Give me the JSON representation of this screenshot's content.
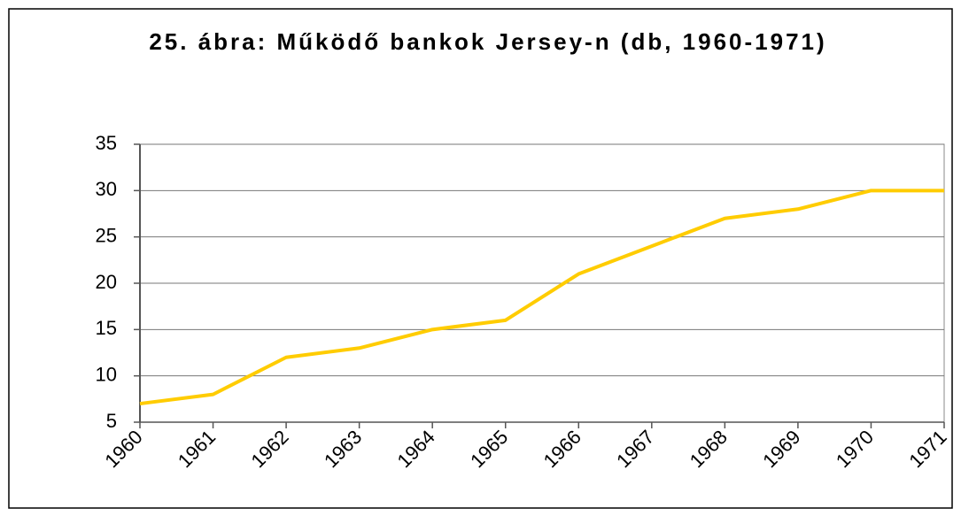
{
  "chart_data": {
    "type": "line",
    "title": "25. ábra: Működő bankok Jersey-n (db, 1960-1971)",
    "categories": [
      "1960",
      "1961",
      "1962",
      "1963",
      "1964",
      "1965",
      "1966",
      "1967",
      "1968",
      "1969",
      "1970",
      "1971"
    ],
    "values": [
      7,
      8,
      12,
      13,
      15,
      16,
      21,
      24,
      27,
      28,
      30,
      30
    ],
    "color": "#ffcc00",
    "ylim": [
      5,
      35
    ],
    "yticks": [
      5,
      10,
      15,
      20,
      25,
      30,
      35
    ],
    "grid": true
  }
}
